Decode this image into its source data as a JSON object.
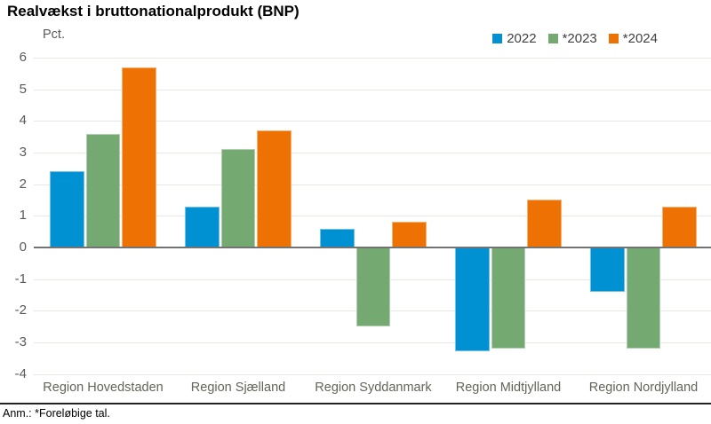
{
  "title": "Realvækst i bruttonationalprodukt (BNP)",
  "footnote": "Anm.: *Foreløbige tal.",
  "colors": {
    "series_2022": "#0091d2",
    "series_2023": "#74aa72",
    "series_2024": "#ee7103",
    "grid": "#e8e8e2",
    "zero_line": "#737373",
    "axis_text": "#595959",
    "xlabel_text": "#64645a",
    "divider": "#222222"
  },
  "chart_data": {
    "type": "bar",
    "title": "Realvækst i bruttonationalprodukt (BNP)",
    "ylabel": "Pct.",
    "xlabel": "",
    "categories": [
      "Region Hovedstaden",
      "Region Sjælland",
      "Region Syddanmark",
      "Region Midtjylland",
      "Region Nordjylland"
    ],
    "series": [
      {
        "name": "2022",
        "color": "#0091d2",
        "values": [
          2.4,
          1.3,
          0.6,
          -3.3,
          -1.4
        ]
      },
      {
        "name": "*2023",
        "color": "#74aa72",
        "values": [
          3.6,
          3.1,
          -2.5,
          -3.2,
          -3.2
        ]
      },
      {
        "name": "*2024",
        "color": "#ee7103",
        "values": [
          5.7,
          3.7,
          0.8,
          1.5,
          1.3
        ]
      }
    ],
    "ylim": [
      -4,
      6
    ],
    "ytick_step": 1,
    "grid": true,
    "legend_position": "top-right"
  }
}
